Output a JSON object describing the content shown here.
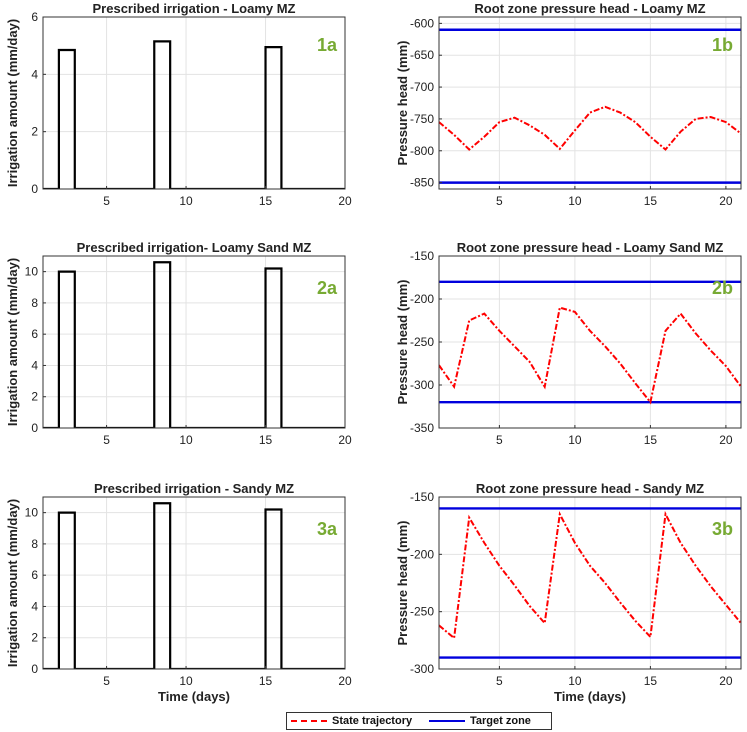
{
  "legend": {
    "state_label": "State trajectory",
    "target_label": "Target zone",
    "state_color": "#ff0000",
    "target_color": "#0000dd"
  },
  "chart_data": [
    {
      "id": "1a",
      "type": "bar",
      "title": "Prescribed irrigation - Loamy MZ",
      "ylabel": "Irrigation amount (mm/day)",
      "xlabel": "",
      "xlim": [
        1,
        20
      ],
      "ylim": [
        0,
        6
      ],
      "xticks": [
        5,
        10,
        15,
        20
      ],
      "yticks": [
        0,
        2,
        4,
        6
      ],
      "bars": [
        {
          "x0": 2,
          "x1": 3,
          "value": 4.85
        },
        {
          "x0": 8,
          "x1": 9,
          "value": 5.15
        },
        {
          "x0": 15,
          "x1": 16,
          "value": 4.95
        }
      ],
      "panel_label": "1a"
    },
    {
      "id": "1b",
      "type": "line",
      "title": "Root zone pressure head - Loamy MZ",
      "ylabel": "Pressure head (mm)",
      "xlabel": "",
      "xlim": [
        1,
        21
      ],
      "ylim": [
        -860,
        -590
      ],
      "xticks": [
        5,
        10,
        15,
        20
      ],
      "yticks": [
        -850,
        -800,
        -750,
        -700,
        -650,
        -600
      ],
      "target_zone": [
        -850,
        -610
      ],
      "state": {
        "x": [
          1,
          2,
          3,
          4,
          5,
          6,
          7,
          8,
          9,
          10,
          11,
          12,
          13,
          14,
          15,
          16,
          17,
          18,
          19,
          20,
          21
        ],
        "y": [
          -755,
          -775,
          -798,
          -778,
          -755,
          -748,
          -760,
          -775,
          -797,
          -768,
          -740,
          -731,
          -740,
          -755,
          -778,
          -798,
          -770,
          -750,
          -747,
          -755,
          -773
        ]
      },
      "panel_label": "1b"
    },
    {
      "id": "2a",
      "type": "bar",
      "title": "Prescribed irrigation- Loamy Sand MZ",
      "ylabel": "Irrigation amount (mm/day)",
      "xlabel": "",
      "xlim": [
        1,
        20
      ],
      "ylim": [
        0,
        11
      ],
      "xticks": [
        5,
        10,
        15,
        20
      ],
      "yticks": [
        0,
        2,
        4,
        6,
        8,
        10
      ],
      "bars": [
        {
          "x0": 2,
          "x1": 3,
          "value": 10.0
        },
        {
          "x0": 8,
          "x1": 9,
          "value": 10.6
        },
        {
          "x0": 15,
          "x1": 16,
          "value": 10.2
        }
      ],
      "panel_label": "2a"
    },
    {
      "id": "2b",
      "type": "line",
      "title": "Root zone pressure head - Loamy Sand MZ",
      "ylabel": "Pressure head (mm)",
      "xlabel": "",
      "xlim": [
        1,
        21
      ],
      "ylim": [
        -350,
        -150
      ],
      "xticks": [
        5,
        10,
        15,
        20
      ],
      "yticks": [
        -350,
        -300,
        -250,
        -200,
        -150
      ],
      "target_zone": [
        -320,
        -180
      ],
      "state": {
        "x": [
          1,
          2,
          3,
          4,
          5,
          6,
          7,
          8,
          9,
          10,
          11,
          12,
          13,
          14,
          15,
          16,
          17,
          18,
          19,
          20,
          21
        ],
        "y": [
          -277,
          -302,
          -225,
          -217,
          -237,
          -255,
          -273,
          -302,
          -210,
          -215,
          -237,
          -255,
          -275,
          -298,
          -320,
          -237,
          -217,
          -240,
          -260,
          -278,
          -302
        ]
      },
      "panel_label": "2b"
    },
    {
      "id": "3a",
      "type": "bar",
      "title": "Prescribed irrigation - Sandy MZ",
      "ylabel": "Irrigation amount (mm/day)",
      "xlabel": "Time (days)",
      "xlim": [
        1,
        20
      ],
      "ylim": [
        0,
        11
      ],
      "xticks": [
        5,
        10,
        15,
        20
      ],
      "yticks": [
        0,
        2,
        4,
        6,
        8,
        10
      ],
      "bars": [
        {
          "x0": 2,
          "x1": 3,
          "value": 10.0
        },
        {
          "x0": 8,
          "x1": 9,
          "value": 10.6
        },
        {
          "x0": 15,
          "x1": 16,
          "value": 10.2
        }
      ],
      "panel_label": "3a"
    },
    {
      "id": "3b",
      "type": "line",
      "title": "Root zone pressure head - Sandy MZ",
      "ylabel": "Pressure head (mm)",
      "xlabel": "Time (days)",
      "xlim": [
        1,
        21
      ],
      "ylim": [
        -300,
        -150
      ],
      "xticks": [
        5,
        10,
        15,
        20
      ],
      "yticks": [
        -300,
        -250,
        -200,
        -150
      ],
      "target_zone": [
        -290,
        -160
      ],
      "state": {
        "x": [
          1,
          2,
          3,
          4,
          5,
          6,
          7,
          8,
          9,
          10,
          11,
          12,
          13,
          14,
          15,
          16,
          17,
          18,
          19,
          20,
          21
        ],
        "y": [
          -262,
          -273,
          -168,
          -190,
          -210,
          -227,
          -245,
          -260,
          -165,
          -190,
          -210,
          -225,
          -242,
          -258,
          -272,
          -165,
          -190,
          -210,
          -228,
          -244,
          -260
        ]
      },
      "panel_label": "3b"
    }
  ]
}
